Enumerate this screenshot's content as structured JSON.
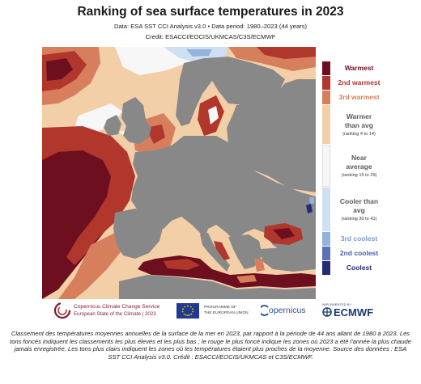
{
  "title": "Ranking of sea surface temperatures in 2023",
  "data_line": "Data: ESA SST CCI Analysis v3.0 • Data period: 1980–2023 (44 years)",
  "credit_line": "Credit: ESACCI/EOCIS/UKMCAS/C3S/ECMWF",
  "colors": {
    "land": "#888888",
    "warmest": "#6e0f1f",
    "second_warmest": "#b1362c",
    "third_warmest": "#d77f5c",
    "warmer": "#f3cfa8",
    "near": "#f7f7f7",
    "cooler": "#cfe0f2",
    "third_coolest": "#93b3dc",
    "second_coolest": "#5a71b8",
    "coolest": "#262b78"
  },
  "legend": [
    {
      "label": "Warmest",
      "note": "",
      "color": "#6e0f1f",
      "text_color": "#6e0f1f"
    },
    {
      "label": "2nd warmest",
      "note": "",
      "color": "#b1362c",
      "text_color": "#b1362c"
    },
    {
      "label": "3rd warmest",
      "note": "",
      "color": "#d77f5c",
      "text_color": "#d77f5c"
    },
    {
      "label": "Warmer than avg",
      "note": "(ranking 4 to 14)",
      "color": "#f3cfa8",
      "text_color": "#5a5a5a"
    },
    {
      "label": "Near average",
      "note": "(ranking 15 to 29)",
      "color": "#f7f7f7",
      "text_color": "#5a5a5a"
    },
    {
      "label": "Cooler than avg",
      "note": "(ranking 30 to 41)",
      "color": "#cfe0f2",
      "text_color": "#5a5a5a"
    },
    {
      "label": "3rd coolest",
      "note": "",
      "color": "#93b3dc",
      "text_color": "#7b9bd0"
    },
    {
      "label": "2nd coolest",
      "note": "",
      "color": "#5a71b8",
      "text_color": "#4a61a8"
    },
    {
      "label": "Coolest",
      "note": "",
      "color": "#262b78",
      "text_color": "#262b78"
    }
  ],
  "logos": {
    "copernicus_service_line1": "Copernicus Climate Change Service",
    "copernicus_service_line2": "European State of the Climate | 2023",
    "programme_line1": "PROGRAMME OF",
    "programme_line2": "THE EUROPEAN UNION",
    "copernicus": "opernicus",
    "implemented_by": "IMPLEMENTED BY",
    "ecmwf": "ECMWF"
  },
  "caption": "Classement des températures moyennes annuelles de la surface de la mer en 2023, par rapport à la période de 44 ans allant de 1980 à 2023. Les tons foncés indiquent les classements les plus élevés et les plus bas ; le rouge le plus foncé indique les zones où 2023 a été l'année la plus chaude jamais enregistrée. Les tons plus clairs indiquent les zones où les températures étaient plus proches de la moyenne. Source des données : ESA SST CCI Analysis v3.0. Crédit : ESACCI/EOCIS/UKMCAS et C3S/ECMWF."
}
